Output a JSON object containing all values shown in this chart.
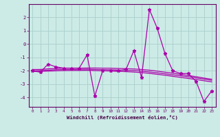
{
  "xlabel": "Windchill (Refroidissement éolien,°C)",
  "x": [
    0,
    1,
    2,
    3,
    4,
    5,
    6,
    7,
    8,
    9,
    10,
    11,
    12,
    13,
    14,
    15,
    16,
    17,
    18,
    19,
    20,
    21,
    22,
    23
  ],
  "y_main": [
    -2.0,
    -2.1,
    -1.5,
    -1.7,
    -1.8,
    -1.8,
    -1.8,
    -0.8,
    -3.9,
    -2.0,
    -2.0,
    -2.0,
    -1.9,
    -0.5,
    -2.5,
    2.6,
    1.2,
    -0.7,
    -2.0,
    -2.2,
    -2.2,
    -2.8,
    -4.3,
    -3.5
  ],
  "line1": [
    -1.9,
    -1.9,
    -1.85,
    -1.82,
    -1.8,
    -1.8,
    -1.8,
    -1.79,
    -1.79,
    -1.8,
    -1.8,
    -1.82,
    -1.84,
    -1.86,
    -1.9,
    -1.95,
    -2.02,
    -2.1,
    -2.18,
    -2.26,
    -2.35,
    -2.44,
    -2.54,
    -2.63
  ],
  "line2": [
    -2.0,
    -1.98,
    -1.95,
    -1.92,
    -1.9,
    -1.9,
    -1.89,
    -1.88,
    -1.9,
    -1.91,
    -1.92,
    -1.94,
    -1.96,
    -1.98,
    -2.02,
    -2.08,
    -2.15,
    -2.22,
    -2.3,
    -2.37,
    -2.45,
    -2.53,
    -2.62,
    -2.71
  ],
  "line3": [
    -2.05,
    -2.04,
    -2.02,
    -2.0,
    -1.98,
    -1.97,
    -1.97,
    -1.96,
    -1.98,
    -2.0,
    -2.01,
    -2.04,
    -2.06,
    -2.09,
    -2.13,
    -2.19,
    -2.26,
    -2.33,
    -2.41,
    -2.49,
    -2.57,
    -2.65,
    -2.74,
    -2.83
  ],
  "bg_color": "#cceae6",
  "grid_color": "#aacfcc",
  "line_color": "#aa00aa",
  "ylim": [
    -4.7,
    3.0
  ],
  "yticks": [
    -4,
    -3,
    -2,
    -1,
    0,
    1,
    2
  ],
  "xticks": [
    0,
    1,
    2,
    3,
    4,
    5,
    6,
    7,
    8,
    9,
    10,
    11,
    12,
    13,
    14,
    15,
    16,
    17,
    18,
    19,
    20,
    21,
    22,
    23
  ]
}
